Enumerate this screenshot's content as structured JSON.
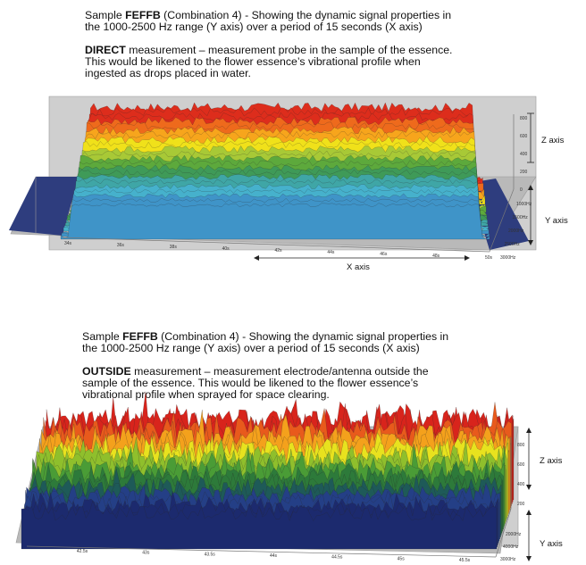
{
  "charts": [
    {
      "caption": {
        "prefix": "Sample ",
        "sample": "FEFFB",
        "rest1": " (Combination 4) - Showing the dynamic signal properties in",
        "line2": "the 1000-2500 Hz range (Y axis) over a period of 15 seconds (X axis)",
        "mode": "DIRECT",
        "mode_rest": " measurement – measurement probe in the sample of the essence.",
        "line4": "This would be likened to the flower essence’s vibrational profile when",
        "line5": "ingested as drops placed in water."
      },
      "chart_data": {
        "type": "surface-3d",
        "x_ticks": [
          "34s",
          "36s",
          "38s",
          "40s",
          "42s",
          "44s",
          "46s",
          "48s",
          "50s"
        ],
        "y_ticks": [
          "1000Hz",
          "1500Hz",
          "2000Hz",
          "2500Hz",
          "3000Hz"
        ],
        "z_ticks": [
          "0",
          "200",
          "400",
          "600",
          "800"
        ],
        "x_label": "X axis",
        "y_label": "Y axis",
        "z_label": "Z axis",
        "zlim": [
          0,
          800
        ],
        "plateau_level": 680,
        "noise_amplitude": 40,
        "colors": [
          "#3f94c8",
          "#46b1cc",
          "#3fa6a6",
          "#3f9a58",
          "#5da93c",
          "#a8c936",
          "#f0e11a",
          "#f7a51c",
          "#ee6a1c",
          "#dd2d1c"
        ]
      }
    },
    {
      "caption": {
        "prefix": "Sample ",
        "sample": "FEFFB",
        "rest1": " (Combination 4) - Showing the dynamic signal properties in",
        "line2": "the 1000-2500 Hz range (Y axis) over a period of 15 seconds (X axis)",
        "mode": "OUTSIDE",
        "mode_rest": " measurement – measurement electrode/antenna outside the",
        "line4": "sample of the essence. This would be likened to the flower essence’s",
        "line5": "vibrational profile when sprayed for space clearing."
      },
      "chart_data": {
        "type": "surface-3d",
        "x_ticks": [
          "42.5s",
          "43s",
          "43.5s",
          "44s",
          "44.5s",
          "45s",
          "45.5s"
        ],
        "y_ticks": [
          "2000Hz",
          "4000Hz",
          "3000Hz"
        ],
        "z_ticks": [
          "200",
          "400",
          "600",
          "800"
        ],
        "x_label": "",
        "y_label": "Y axis",
        "z_label": "Z axis",
        "zlim": [
          0,
          800
        ],
        "plateau_level": 520,
        "noise_amplitude": 110,
        "colors": [
          "#1c2a6e",
          "#243f86",
          "#1e5a58",
          "#2d7a3a",
          "#4a9c36",
          "#8fbf2c",
          "#e8e21e",
          "#f4a11c",
          "#e85a1c",
          "#d8241c"
        ]
      }
    }
  ]
}
